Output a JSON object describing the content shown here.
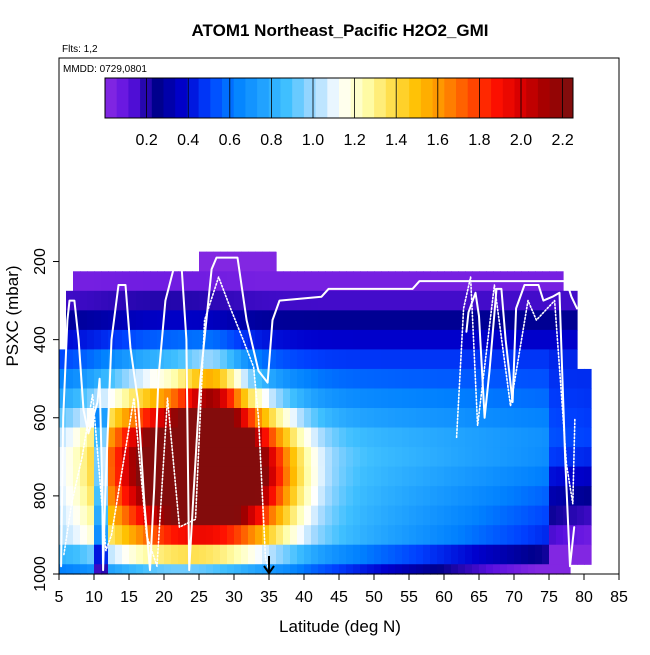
{
  "chart_data": {
    "type": "heatmap",
    "title": "ATOM1 Northeast_Pacific H2O2_GMI",
    "flights_label": "Flts: 1,2",
    "date_label": "MMDD: 0729,0801",
    "xlabel": "Latitude (deg N)",
    "ylabel": "PSXC (mbar)",
    "xlim": [
      5,
      85
    ],
    "ylim": [
      1000,
      0
    ],
    "x_ticks": [
      5,
      10,
      15,
      20,
      25,
      30,
      35,
      40,
      45,
      50,
      55,
      60,
      65,
      70,
      75,
      80,
      85
    ],
    "y_ticks": [
      200,
      400,
      600,
      800,
      1000
    ],
    "colorbar": {
      "range": [
        0,
        2.25
      ],
      "ticks": [
        0.2,
        0.4,
        0.6,
        0.8,
        1.0,
        1.2,
        1.4,
        1.6,
        1.8,
        2.0,
        2.2
      ],
      "tick_labels": [
        "0.2",
        "0.4",
        "0.6",
        "0.8",
        "1.0",
        "1.2",
        "1.4",
        "1.6",
        "1.8",
        "2.0",
        "2.2"
      ],
      "colors": [
        "#8a2be2",
        "#5a10e0",
        "#00008b",
        "#0000cd",
        "#0040ff",
        "#0080ff",
        "#1ea0ff",
        "#40c0ff",
        "#9fd8ff",
        "#ffffff",
        "#ffffb0",
        "#ffe050",
        "#ffc000",
        "#ff9000",
        "#ff5000",
        "#ff1000",
        "#d80000",
        "#a00000",
        "#7a1010"
      ]
    },
    "grid": {
      "lat_min": 5,
      "lat_step": 1,
      "lat_count": 75,
      "pressure_levels": [
        200,
        250,
        300,
        350,
        400,
        450,
        500,
        550,
        600,
        650,
        700,
        750,
        800,
        850,
        900,
        950,
        1000
      ],
      "pressure_bin": 50
    },
    "columns_top_pressure": [
      {
        "from": 5,
        "to": 5.9,
        "top": 425
      },
      {
        "from": 6,
        "to": 6.9,
        "top": 275
      },
      {
        "from": 7,
        "to": 22.9,
        "top": 225
      },
      {
        "from": 23,
        "to": 24.9,
        "top": 225
      },
      {
        "from": 25,
        "to": 35.9,
        "top": 175
      },
      {
        "from": 36,
        "to": 76.9,
        "top": 225
      },
      {
        "from": 77,
        "to": 78.9,
        "top": 275
      },
      {
        "from": 79,
        "to": 80,
        "top": 475
      }
    ],
    "columns_bottom_pressure": [
      {
        "from": 5,
        "to": 77.9,
        "top": 1000
      },
      {
        "from": 78,
        "to": 80,
        "top": 975
      }
    ],
    "anomalies": [
      {
        "lat": 20,
        "p": 720,
        "value": 1.35,
        "dlat": 7,
        "dp": 160
      },
      {
        "lat": 30,
        "p": 740,
        "value": 1.45,
        "dlat": 6,
        "dp": 120
      },
      {
        "lat": 27,
        "p": 560,
        "value": 0.6,
        "dlat": 3,
        "dp": 80
      }
    ],
    "flight_tracks": [
      {
        "name": "track-1",
        "points": [
          [
            5.3,
            980
          ],
          [
            5.6,
            600
          ],
          [
            6.2,
            350
          ],
          [
            6.5,
            300
          ],
          [
            7.2,
            300
          ],
          [
            7.8,
            400
          ],
          [
            8.5,
            580
          ],
          [
            9.2,
            640
          ],
          [
            10.5,
            560
          ],
          [
            10.8,
            500
          ],
          [
            11.2,
            800
          ],
          [
            11.3,
            990
          ],
          [
            11.6,
            800
          ],
          [
            12.5,
            400
          ],
          [
            13.5,
            260
          ],
          [
            14.5,
            260
          ],
          [
            15.2,
            420
          ],
          [
            16.3,
            560
          ],
          [
            17.2,
            820
          ],
          [
            18,
            990
          ],
          [
            18.6,
            780
          ],
          [
            19.2,
            500
          ],
          [
            20.2,
            300
          ],
          [
            21.5,
            210
          ],
          [
            22.5,
            210
          ],
          [
            23.2,
            400
          ],
          [
            23.6,
            990
          ],
          [
            24.2,
            800
          ],
          [
            25.2,
            500
          ],
          [
            26.8,
            220
          ],
          [
            27.5,
            190
          ],
          [
            30.5,
            190
          ],
          [
            31.8,
            350
          ],
          [
            33.5,
            480
          ],
          [
            34.8,
            510
          ],
          [
            35.5,
            350
          ],
          [
            36.5,
            300
          ],
          [
            42.5,
            290
          ],
          [
            43.5,
            270
          ],
          [
            55.5,
            270
          ],
          [
            56.5,
            250
          ],
          [
            77.5,
            250
          ],
          [
            78.2,
            290
          ],
          [
            79,
            320
          ]
        ]
      },
      {
        "name": "track-2",
        "points": [
          [
            63.2,
            380
          ],
          [
            63.5,
            330
          ],
          [
            64.5,
            280
          ],
          [
            65,
            340
          ],
          [
            65.8,
            600
          ],
          [
            66.5,
            480
          ],
          [
            67.5,
            270
          ],
          [
            68.2,
            270
          ],
          [
            68.8,
            400
          ],
          [
            69.8,
            560
          ],
          [
            70.3,
            320
          ],
          [
            71.5,
            260
          ],
          [
            73.5,
            260
          ],
          [
            74.2,
            300
          ],
          [
            75.5,
            290
          ],
          [
            76.5,
            280
          ],
          [
            77.3,
            700
          ],
          [
            78,
            980
          ],
          [
            78.6,
            880
          ]
        ]
      },
      {
        "name": "track-3",
        "points": [
          [
            5.7,
            950
          ],
          [
            6.8,
            820
          ],
          [
            8.3,
            700
          ],
          [
            9.8,
            540
          ],
          [
            11.7,
            940
          ],
          [
            12.5,
            900
          ],
          [
            15.7,
            550
          ],
          [
            17.5,
            900
          ],
          [
            19,
            980
          ],
          [
            20.5,
            550
          ],
          [
            22.2,
            880
          ],
          [
            24.5,
            860
          ],
          [
            25.8,
            350
          ],
          [
            27.8,
            240
          ],
          [
            29.5,
            320
          ],
          [
            31.3,
            400
          ],
          [
            32.8,
            470
          ],
          [
            33.5,
            600
          ],
          [
            34.5,
            960
          ],
          [
            35,
            990
          ]
        ]
      },
      {
        "name": "track-4",
        "points": [
          [
            61.8,
            650
          ],
          [
            62.8,
            320
          ],
          [
            63.8,
            240
          ],
          [
            64.8,
            620
          ],
          [
            67.2,
            260
          ],
          [
            69.5,
            570
          ],
          [
            72,
            300
          ],
          [
            73.2,
            350
          ],
          [
            75.8,
            300
          ],
          [
            77.5,
            720
          ],
          [
            78.4,
            820
          ],
          [
            78.7,
            600
          ]
        ]
      }
    ],
    "marker_latitude": 35
  }
}
